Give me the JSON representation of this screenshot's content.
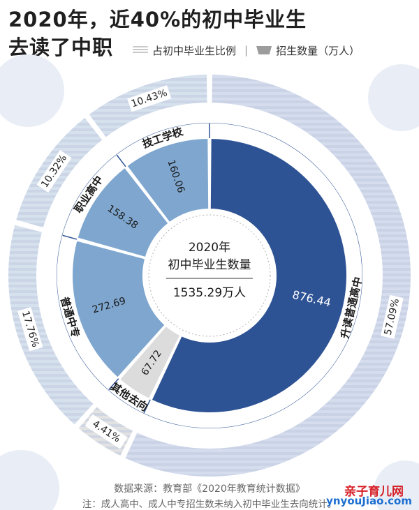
{
  "header": {
    "title_line1": "2020年，近40%的初中毕业生",
    "title_line2": "去读了中职"
  },
  "legend": {
    "item1": "占初中毕业生比例",
    "separator": "|",
    "item2": "招生数量（万人）"
  },
  "chart_data": {
    "type": "pie",
    "center": {
      "line1": "2020年",
      "line2": "初中毕业生数量",
      "total": "1535.29万人"
    },
    "categories": [
      "升读普通高中",
      "其他去向",
      "普通中专",
      "职业高中",
      "技工学校"
    ],
    "values": [
      876.44,
      67.72,
      272.69,
      158.38,
      160.06
    ],
    "value_labels": [
      "876.44",
      "67.72",
      "272.69",
      "158.38",
      "160.06"
    ],
    "percent_labels": [
      "57.09%",
      "4.41%",
      "17.76%",
      "10.32%",
      "10.43%"
    ],
    "colors": [
      "#2e5395",
      "#dcdcdc",
      "#7ea6cf",
      "#7ea6cf",
      "#7ea6cf"
    ],
    "outer_stripe_colors": [
      "#d4dced",
      "#e2e2e2",
      "#d6e1ee",
      "#d6e1ee",
      "#d6e1ee"
    ],
    "start_angle_deg": 0,
    "direction": "clockwise"
  },
  "footer": {
    "source": "数据来源：教育部《2020年教育统计数据》",
    "note": "注：成人高中、成人中专招生数未纳入初中毕业生去向统计。"
  },
  "watermark": {
    "line1": "亲子育儿网",
    "line2": "ynyouJiao.com"
  }
}
